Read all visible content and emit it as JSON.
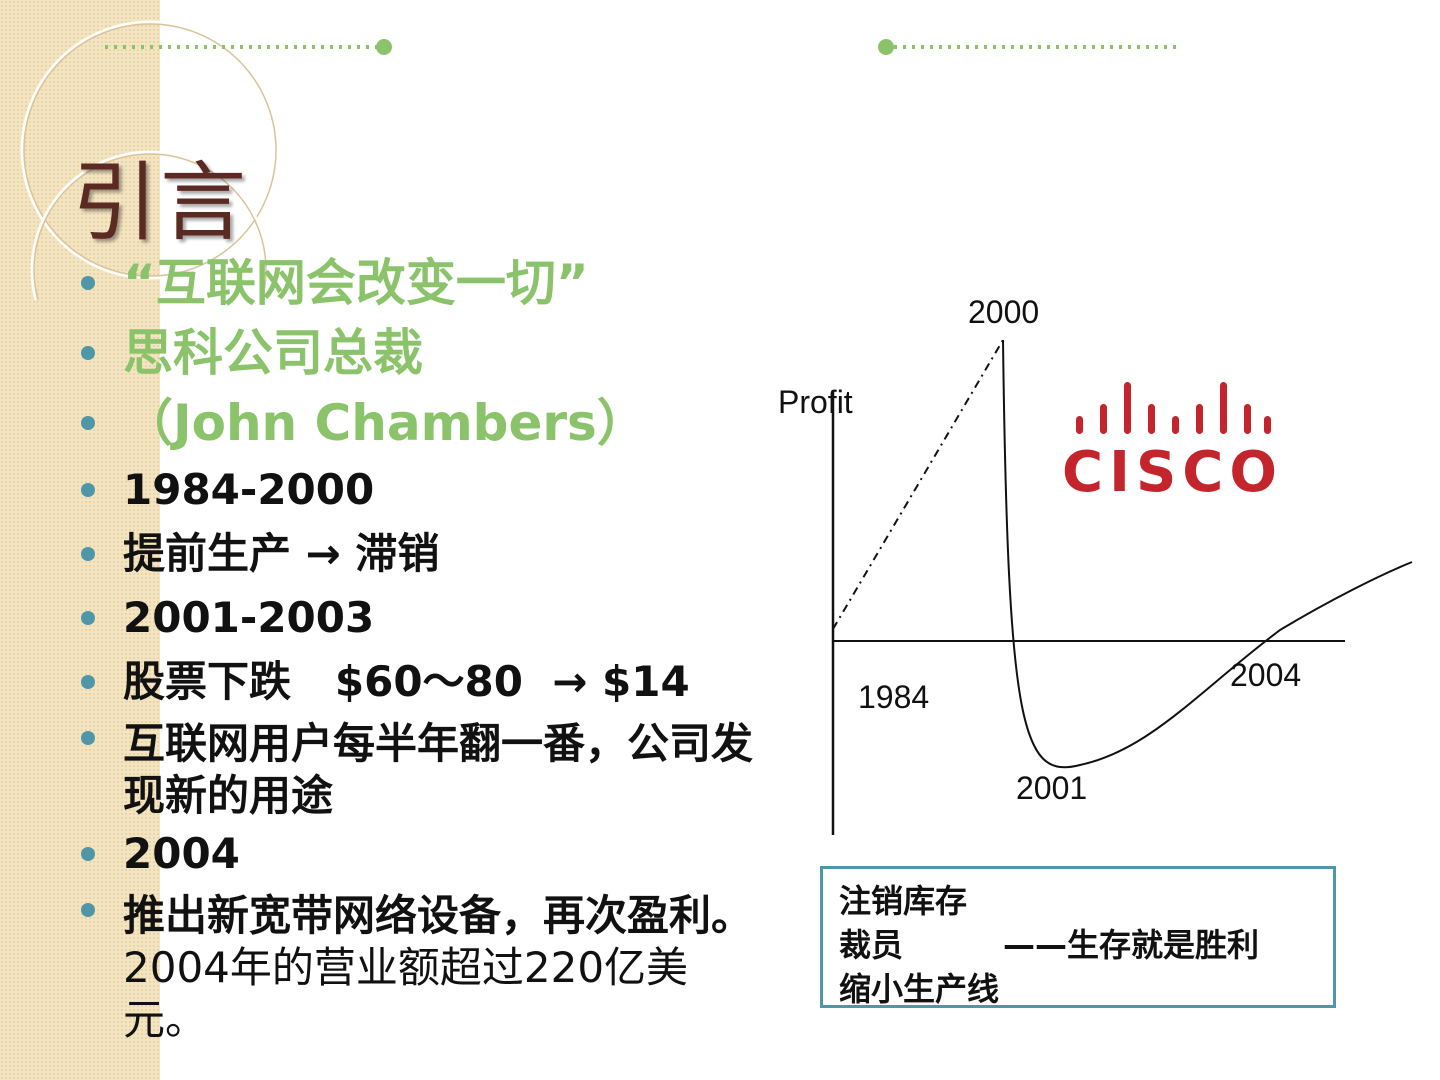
{
  "slide": {
    "title": "引言",
    "colors": {
      "accent_green": "#8bc36b",
      "bullet_teal": "#4f97a8",
      "title_brown": "#5b2a23",
      "cisco_red": "#c4252c"
    }
  },
  "bullets": [
    {
      "text": "“互联网会改变一切”",
      "style": "green"
    },
    {
      "text": "思科公司总裁",
      "style": "green"
    },
    {
      "text": "（John Chambers）",
      "style": "green"
    },
    {
      "text": "1984-2000",
      "style": "black"
    },
    {
      "text": "提前生产 → 滞销",
      "style": "black"
    },
    {
      "text": "2001-2003",
      "style": "black"
    },
    {
      "text": "股票下跌   $60～80  → $14",
      "style": "black"
    },
    {
      "text": "互联网用户每半年翻一番，公司发现新的用途",
      "style": "black"
    },
    {
      "text": "2004",
      "style": "black"
    },
    {
      "text": "推出新宽带网络设备，再次盈利。",
      "text2": "2004年的营业额超过220亿美元。",
      "style": "black"
    }
  ],
  "chart_data": {
    "type": "line",
    "ylabel": "Profit",
    "annotations": [
      "2000",
      "1984",
      "2001",
      "2004"
    ],
    "points": [
      {
        "year": 1984,
        "profit": 0.0
      },
      {
        "year": 2000,
        "profit": 1.0
      },
      {
        "year": 2001,
        "profit": -0.4
      },
      {
        "year": 2004,
        "profit": 0.0
      }
    ]
  },
  "logo": {
    "text": "CISCO"
  },
  "note": {
    "line1": "注销库存",
    "line2": "裁员",
    "tagline": "——生存就是胜利",
    "line3": "缩小生产线"
  }
}
